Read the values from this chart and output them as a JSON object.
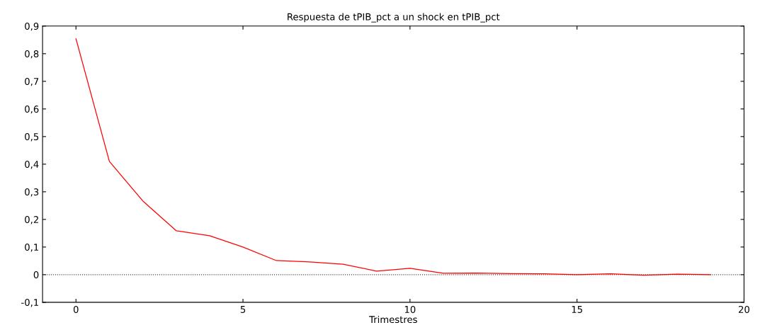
{
  "chart_data": {
    "type": "line",
    "title": "Respuesta de tPIB_pct a un shock en tPIB_pct",
    "xlabel": "Trimestres",
    "x": [
      0,
      1,
      2,
      3,
      4,
      5,
      6,
      7,
      8,
      9,
      10,
      11,
      12,
      13,
      14,
      15,
      16,
      17,
      18,
      19
    ],
    "series": [
      {
        "color": "#ff0000",
        "values": [
          0.854,
          0.41,
          0.267,
          0.159,
          0.141,
          0.1,
          0.051,
          0.046,
          0.038,
          0.013,
          0.023,
          0.005,
          0.006,
          0.004,
          0.003,
          0.0,
          0.003,
          -0.002,
          0.002,
          0.0
        ]
      }
    ],
    "xlim": [
      -1,
      20
    ],
    "xticks": [
      0,
      5,
      10,
      15,
      20
    ],
    "ylim": [
      -0.1,
      0.9
    ],
    "yticks": [
      {
        "value": -0.1,
        "label": "-0,1"
      },
      {
        "value": 0,
        "label": "0"
      },
      {
        "value": 0.1,
        "label": "0,1"
      },
      {
        "value": 0.2,
        "label": "0,2"
      },
      {
        "value": 0.3,
        "label": "0,3"
      },
      {
        "value": 0.4,
        "label": "0,4"
      },
      {
        "value": 0.5,
        "label": "0,5"
      },
      {
        "value": 0.6,
        "label": "0,6"
      },
      {
        "value": 0.7,
        "label": "0,7"
      },
      {
        "value": 0.8,
        "label": "0,8"
      },
      {
        "value": 0.9,
        "label": "0,9"
      }
    ],
    "ref_lines": [
      {
        "axis": "y",
        "value": 0,
        "color": "#404040",
        "line_style": "dotted"
      }
    ],
    "grid": false,
    "marker": "none",
    "line_style": "solid"
  }
}
